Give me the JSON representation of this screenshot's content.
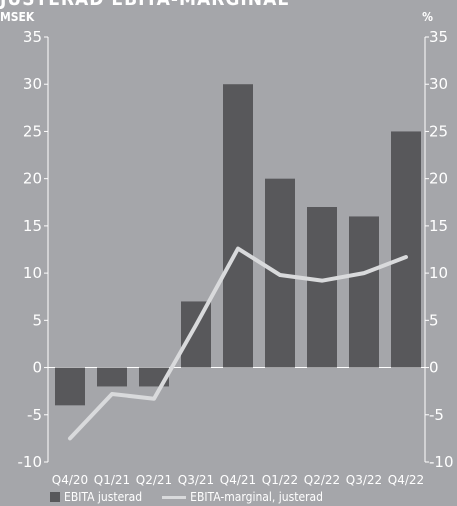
{
  "title": "JUSTERAD EBITA-MARGINAL",
  "unit_left": "MSEK",
  "unit_right": "%",
  "colors": {
    "background": "#a5a6aa",
    "bar": "#58585b",
    "line": "#d9dadc",
    "axis": "#ffffff",
    "text": "#ffffff"
  },
  "legend": {
    "bar_label": "EBITA justerad",
    "line_label": "EBITA-marginal, justerad"
  },
  "chart_data": {
    "type": "bar",
    "categories": [
      "Q4/20",
      "Q1/21",
      "Q2/21",
      "Q3/21",
      "Q4/21",
      "Q1/22",
      "Q2/22",
      "Q3/22",
      "Q4/22"
    ],
    "series": [
      {
        "name": "EBITA justerad",
        "type": "bar",
        "axis": "left",
        "values": [
          -4,
          -2,
          -2,
          7,
          30,
          20,
          17,
          16,
          25
        ]
      },
      {
        "name": "EBITA-marginal, justerad",
        "type": "line",
        "axis": "right",
        "values": [
          -7.5,
          -2.8,
          -3.3,
          4.5,
          12.6,
          9.8,
          9.2,
          10.0,
          11.7
        ]
      }
    ],
    "ylim_left": [
      -10,
      35
    ],
    "ylim_right": [
      -10,
      35
    ],
    "yticks": [
      -10,
      -5,
      0,
      5,
      10,
      15,
      20,
      25,
      30,
      35
    ],
    "legend_position": "bottom-left"
  }
}
